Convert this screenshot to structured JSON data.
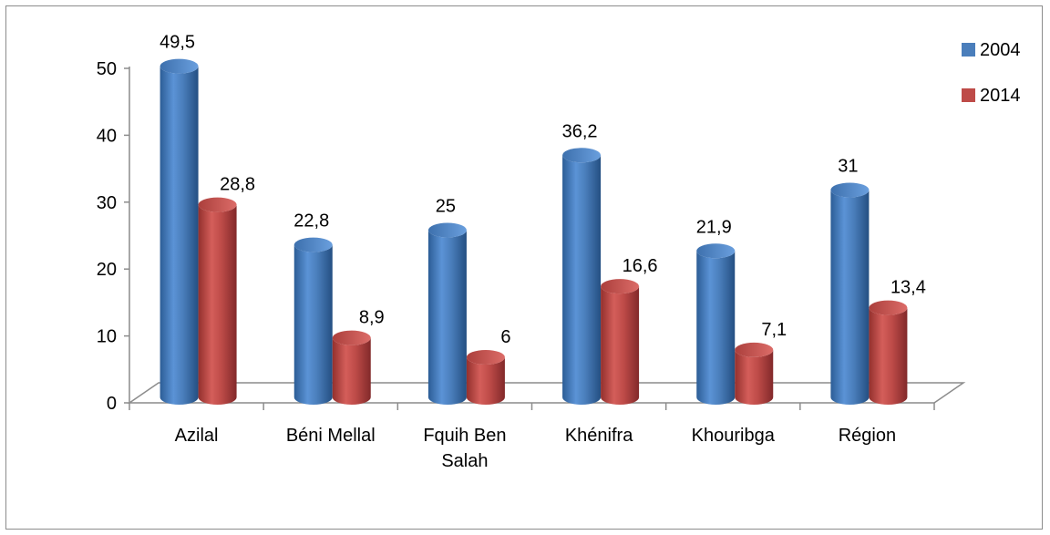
{
  "chart_data": {
    "type": "bar",
    "style": "3d-cylinder",
    "categories": [
      [
        "Azilal"
      ],
      [
        "Béni Mellal"
      ],
      [
        "Fquih Ben",
        "Salah"
      ],
      [
        "Khénifra"
      ],
      [
        "Khouribga"
      ],
      [
        "Région"
      ]
    ],
    "series": [
      {
        "name": "2004",
        "values": [
          49.5,
          22.8,
          25,
          36.2,
          21.9,
          31
        ],
        "labels": [
          "49,5",
          "22,8",
          "25",
          "36,2",
          "21,9",
          "31"
        ],
        "color": "#4a7ebb"
      },
      {
        "name": "2014",
        "values": [
          28.8,
          8.9,
          6,
          16.6,
          7.1,
          13.4
        ],
        "labels": [
          "28,8",
          "8,9",
          "6",
          "16,6",
          "7,1",
          "13,4"
        ],
        "color": "#be4b48"
      }
    ],
    "yticks": [
      "0",
      "10",
      "20",
      "30",
      "40",
      "50"
    ],
    "ylim": [
      0,
      50
    ],
    "legend": "right",
    "grid": false
  }
}
